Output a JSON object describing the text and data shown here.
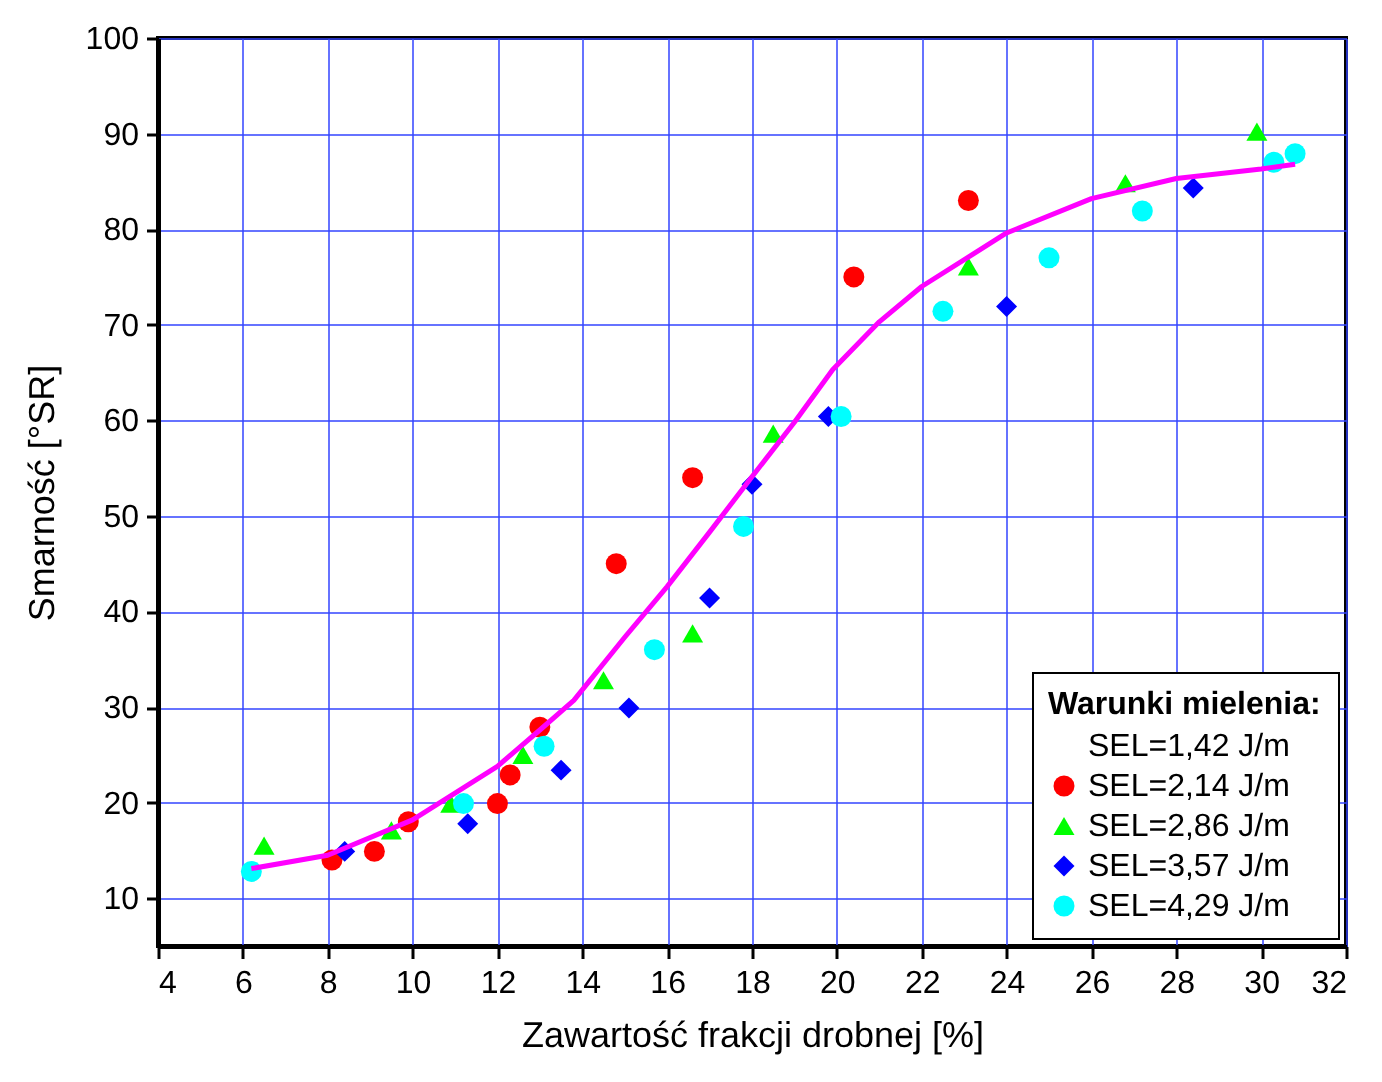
{
  "chart_data": {
    "type": "scatter",
    "xlabel": "Zawartość frakcji drobnej [%]",
    "ylabel": "Smarność [°SR]",
    "legend_title": "Warunki mielenia:",
    "xlim": [
      4,
      32
    ],
    "xticks": [
      4,
      6,
      8,
      10,
      12,
      14,
      16,
      18,
      20,
      22,
      24,
      26,
      28,
      30,
      32
    ],
    "ylim": [
      5,
      100
    ],
    "yticks": [
      10,
      20,
      30,
      40,
      50,
      60,
      70,
      80,
      90,
      100
    ],
    "grid": true,
    "legend": "bottom right",
    "series": [
      {
        "name": "SEL=1,42 J/m",
        "marker": "none"
      },
      {
        "name": "SEL=2,14 J/m",
        "color": "#ff0000",
        "marker": "circle",
        "x": [
          8.1,
          9.1,
          9.9,
          12.0,
          12.3,
          13.0,
          14.8,
          16.6,
          20.4,
          23.1
        ],
        "values": [
          14.0,
          14.9,
          18.0,
          19.9,
          22.9,
          27.9,
          45.0,
          54.0,
          75.0,
          83.0
        ]
      },
      {
        "name": "SEL=2,86 J/m",
        "color": "#00ff00",
        "marker": "triangle",
        "x": [
          6.5,
          9.5,
          10.9,
          12.6,
          14.5,
          16.6,
          18.5,
          23.1,
          26.8,
          29.9
        ],
        "values": [
          15.5,
          17.1,
          19.9,
          25.0,
          32.8,
          37.7,
          58.6,
          76.1,
          84.8,
          90.2
        ]
      },
      {
        "name": "SEL=3,57 J/m",
        "color": "#0000ff",
        "marker": "diamond",
        "x": [
          8.4,
          11.3,
          13.5,
          15.1,
          17.0,
          18.0,
          19.8,
          24.0,
          28.4
        ],
        "values": [
          14.9,
          17.8,
          23.4,
          29.9,
          41.4,
          53.3,
          60.4,
          71.9,
          84.3
        ]
      },
      {
        "name": "SEL=4,29 J/m",
        "color": "#00ffff",
        "marker": "circle",
        "x": [
          6.2,
          11.2,
          13.1,
          15.7,
          17.8,
          20.1,
          22.5,
          25.0,
          27.2,
          30.3,
          30.8
        ],
        "values": [
          12.8,
          19.9,
          25.9,
          36.0,
          48.9,
          60.4,
          71.4,
          77.0,
          81.9,
          87.0,
          87.9
        ]
      },
      {
        "type": "line",
        "color": "#ff00ff",
        "marker": "none",
        "line_style": "solid",
        "x": [
          6.2,
          8,
          10,
          12,
          13,
          13.8,
          15,
          16,
          17,
          18,
          19,
          19.9,
          21,
          22,
          24,
          26,
          28,
          30,
          30.8
        ],
        "values": [
          13.1,
          14.5,
          18.2,
          23.8,
          27.6,
          30.7,
          37.3,
          42.6,
          48.3,
          54.1,
          59.8,
          65.3,
          70.3,
          74.0,
          79.6,
          83.2,
          85.3,
          86.3,
          86.8
        ]
      }
    ]
  }
}
